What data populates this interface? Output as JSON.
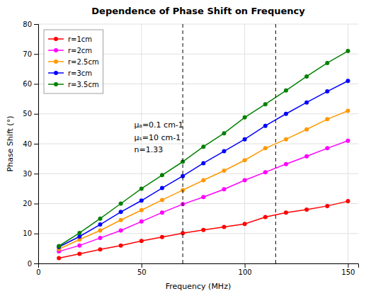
{
  "chart_data": {
    "type": "line",
    "title": "Dependence of Phase Shift on Frequency",
    "x_label": "Frequency (MHz)",
    "y_label": "Phase Shift (°)",
    "xlim": [
      0,
      155
    ],
    "ylim": [
      0,
      80
    ],
    "xticks": [
      0,
      50,
      100,
      150
    ],
    "yticks": [
      0,
      10,
      20,
      30,
      40,
      50,
      60,
      70,
      80
    ],
    "grid": true,
    "legend": "upper-left",
    "marker": "circle",
    "line_style": "solid",
    "vlines": [
      70,
      115
    ],
    "annotation": [
      "μₐ=0.1 cm-1",
      "μₛ=10 cm-1",
      "n=1.33"
    ],
    "x": [
      10,
      20,
      30,
      40,
      50,
      60,
      70,
      80,
      90,
      100,
      110,
      120,
      130,
      140,
      150
    ],
    "series": [
      {
        "name": "r=1cm",
        "color": "#ff0000",
        "values": [
          1.8,
          3.2,
          4.7,
          6.0,
          7.5,
          8.8,
          10.1,
          11.2,
          12.2,
          13.2,
          15.5,
          17.0,
          18.0,
          19.2,
          20.8
        ]
      },
      {
        "name": "r=2cm",
        "color": "#ff00ff",
        "values": [
          4.0,
          6.0,
          8.5,
          11.0,
          14.0,
          17.0,
          19.8,
          22.2,
          24.8,
          27.8,
          30.5,
          33.2,
          35.8,
          38.5,
          41.0
        ]
      },
      {
        "name": "r=2.5cm",
        "color": "#ff9900",
        "values": [
          4.8,
          8.0,
          11.0,
          14.5,
          17.8,
          21.2,
          24.5,
          27.8,
          31.0,
          34.5,
          38.5,
          41.5,
          44.8,
          48.2,
          51.0
        ]
      },
      {
        "name": "r=3cm",
        "color": "#0000ff",
        "values": [
          5.5,
          9.0,
          13.0,
          17.2,
          21.0,
          25.2,
          29.2,
          33.5,
          37.5,
          41.5,
          46.0,
          50.0,
          53.8,
          57.5,
          61.0
        ]
      },
      {
        "name": "r=3.5cm",
        "color": "#008000",
        "values": [
          5.8,
          10.2,
          15.0,
          20.0,
          25.0,
          29.5,
          34.0,
          39.0,
          43.5,
          48.8,
          53.2,
          57.8,
          62.5,
          67.0,
          71.0
        ]
      }
    ]
  }
}
